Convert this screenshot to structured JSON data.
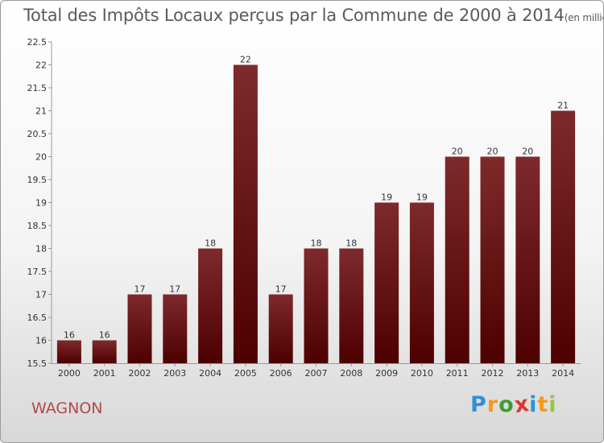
{
  "chart_data": {
    "type": "bar",
    "title": "Total des Impôts Locaux perçus par la Commune de 2000 à 2014",
    "unit": "(en milliers d'€)",
    "categories": [
      "2000",
      "2001",
      "2002",
      "2003",
      "2004",
      "2005",
      "2006",
      "2007",
      "2008",
      "2009",
      "2010",
      "2011",
      "2012",
      "2013",
      "2014"
    ],
    "values": [
      16,
      16,
      17,
      17,
      18,
      22,
      17,
      18,
      18,
      19,
      19,
      20,
      20,
      20,
      21
    ],
    "value_labels": [
      "16",
      "16",
      "17",
      "17",
      "18",
      "22",
      "17",
      "18",
      "18",
      "19",
      "19",
      "20",
      "20",
      "20",
      "21"
    ],
    "ylim": [
      15.5,
      22.5
    ],
    "yticks": [
      15.5,
      16,
      16.5,
      17,
      17.5,
      18,
      18.5,
      19,
      19.5,
      20,
      20.5,
      21,
      21.5,
      22,
      22.5
    ],
    "ytick_labels": [
      "15.5",
      "16",
      "16.5",
      "17",
      "17.5",
      "18",
      "18.5",
      "19",
      "19.5",
      "20",
      "20.5",
      "21",
      "21.5",
      "22",
      "22.5"
    ],
    "xlabel": "",
    "ylabel": "",
    "grid": false,
    "bar_color_top": "#7e2a2c",
    "bar_color_bottom": "#4d0000"
  },
  "commune_name": "WAGNON",
  "logo": {
    "letters": [
      "P",
      "r",
      "o",
      "x",
      "i",
      "t",
      "i"
    ],
    "colors": [
      "#2f8fd6",
      "#f29a1e",
      "#3f9d2f",
      "#d93a2c",
      "#2f8fd6",
      "#f29a1e",
      "#9ac43a"
    ]
  }
}
